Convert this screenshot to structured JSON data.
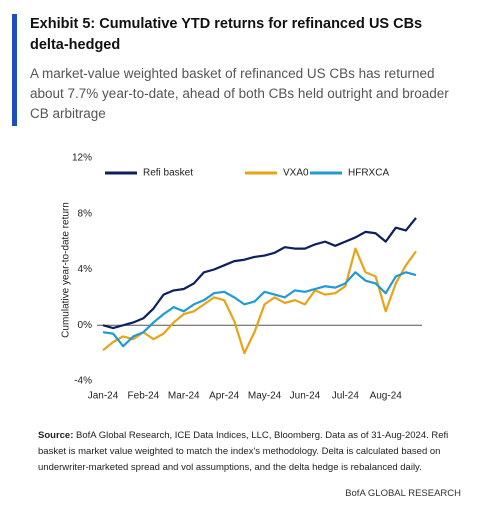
{
  "chart_data": {
    "type": "line",
    "title": "Exhibit 5: Cumulative YTD returns for refinanced US CBs delta-hedged",
    "subtitle": "A market-value weighted basket of refinanced US CBs has returned about 7.7% year-to-date, ahead of both CBs held outright and broader CB arbitrage",
    "y_label": "Cumulative year-to-date return",
    "categories": [
      "Jan-24",
      null,
      null,
      null,
      "Feb-24",
      null,
      null,
      null,
      "Mar-24",
      null,
      null,
      null,
      "Apr-24",
      null,
      null,
      null,
      "May-24",
      null,
      null,
      null,
      "Jun-24",
      null,
      null,
      null,
      "Jul-24",
      null,
      null,
      null,
      "Aug-24",
      null,
      null,
      null
    ],
    "series": [
      {
        "name": "Refi basket",
        "color": "#0d1f5c",
        "values": [
          0,
          -0.2,
          0,
          0.2,
          0.5,
          1.2,
          2.2,
          2.5,
          2.6,
          3.0,
          3.8,
          4.0,
          4.3,
          4.6,
          4.7,
          4.9,
          5.0,
          5.2,
          5.6,
          5.5,
          5.5,
          5.8,
          6.0,
          5.7,
          6.0,
          6.3,
          6.7,
          6.6,
          6.0,
          7.0,
          6.8,
          7.7
        ]
      },
      {
        "name": "VXA0",
        "color": "#e8a317",
        "values": [
          -1.8,
          -1.2,
          -0.8,
          -1.0,
          -0.5,
          -1.0,
          -0.6,
          0.2,
          0.8,
          1.0,
          1.5,
          2.0,
          1.8,
          0.3,
          -2.0,
          -0.5,
          1.5,
          2.0,
          1.6,
          1.8,
          1.5,
          2.5,
          2.2,
          2.3,
          2.8,
          5.5,
          3.8,
          3.5,
          1.0,
          3.0,
          4.3,
          5.3
        ]
      },
      {
        "name": "HFRXCA",
        "color": "#1f9ad6",
        "values": [
          -0.5,
          -0.6,
          -1.5,
          -0.8,
          -0.5,
          0.2,
          0.8,
          1.3,
          1.0,
          1.5,
          1.8,
          2.3,
          2.4,
          2.0,
          1.5,
          1.7,
          2.4,
          2.2,
          2.0,
          2.5,
          2.4,
          2.6,
          2.8,
          2.7,
          3.0,
          3.8,
          3.2,
          3.0,
          2.3,
          3.5,
          3.8,
          3.6
        ]
      }
    ],
    "ylim": [
      -4,
      12
    ],
    "yticks": [
      {
        "value": -4,
        "label": "-4%"
      },
      {
        "value": 0,
        "label": "0%"
      },
      {
        "value": 4,
        "label": "4%"
      },
      {
        "value": 8,
        "label": "8%"
      },
      {
        "value": 12,
        "label": "12%"
      }
    ],
    "zero_line": true,
    "legend": "top",
    "source_label": "Source:",
    "source": "BofA Global Research, ICE Data Indices, LLC, Bloomberg. Data as of 31-Aug-2024. Refi basket is market value weighted to match the index's methodology. Delta is calculated based on underwriter-marketed spread and vol assumptions, and the delta hedge is rebalanced daily.",
    "brand": "BofA GLOBAL RESEARCH"
  }
}
